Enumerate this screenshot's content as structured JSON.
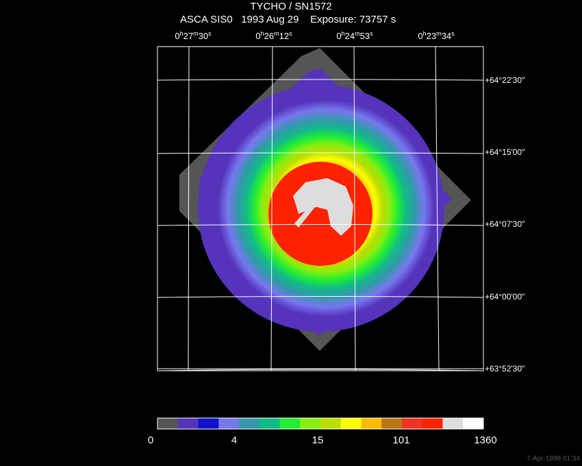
{
  "header": {
    "title": "TYCHO / SN1572",
    "subtitle": "ASCA SIS0   1993 Aug 29    Exposure: 73757 s"
  },
  "ra_labels": [
    {
      "h": "0",
      "m": "27",
      "s": "30"
    },
    {
      "h": "0",
      "m": "26",
      "s": "12"
    },
    {
      "h": "0",
      "m": "24",
      "s": "53"
    },
    {
      "h": "0",
      "m": "23",
      "s": "34"
    }
  ],
  "dec_labels": [
    "+64°22'30\"",
    "+64°15'00\"",
    "+64°07'30\"",
    "+64°00'00\"",
    "+63°52'30\""
  ],
  "colorbar": {
    "colors": [
      "#555555",
      "#5533bb",
      "#1111cc",
      "#7777ee",
      "#3399aa",
      "#11bb88",
      "#22ee33",
      "#88ee11",
      "#bbdd00",
      "#ffff00",
      "#ffbb00",
      "#bb7711",
      "#ee3322",
      "#ff2200",
      "#dddddd",
      "#ffffff"
    ],
    "labels": [
      "0",
      "4",
      "15",
      "101",
      "1360"
    ]
  },
  "timestamp": "7-Apr-1998 01:34"
}
